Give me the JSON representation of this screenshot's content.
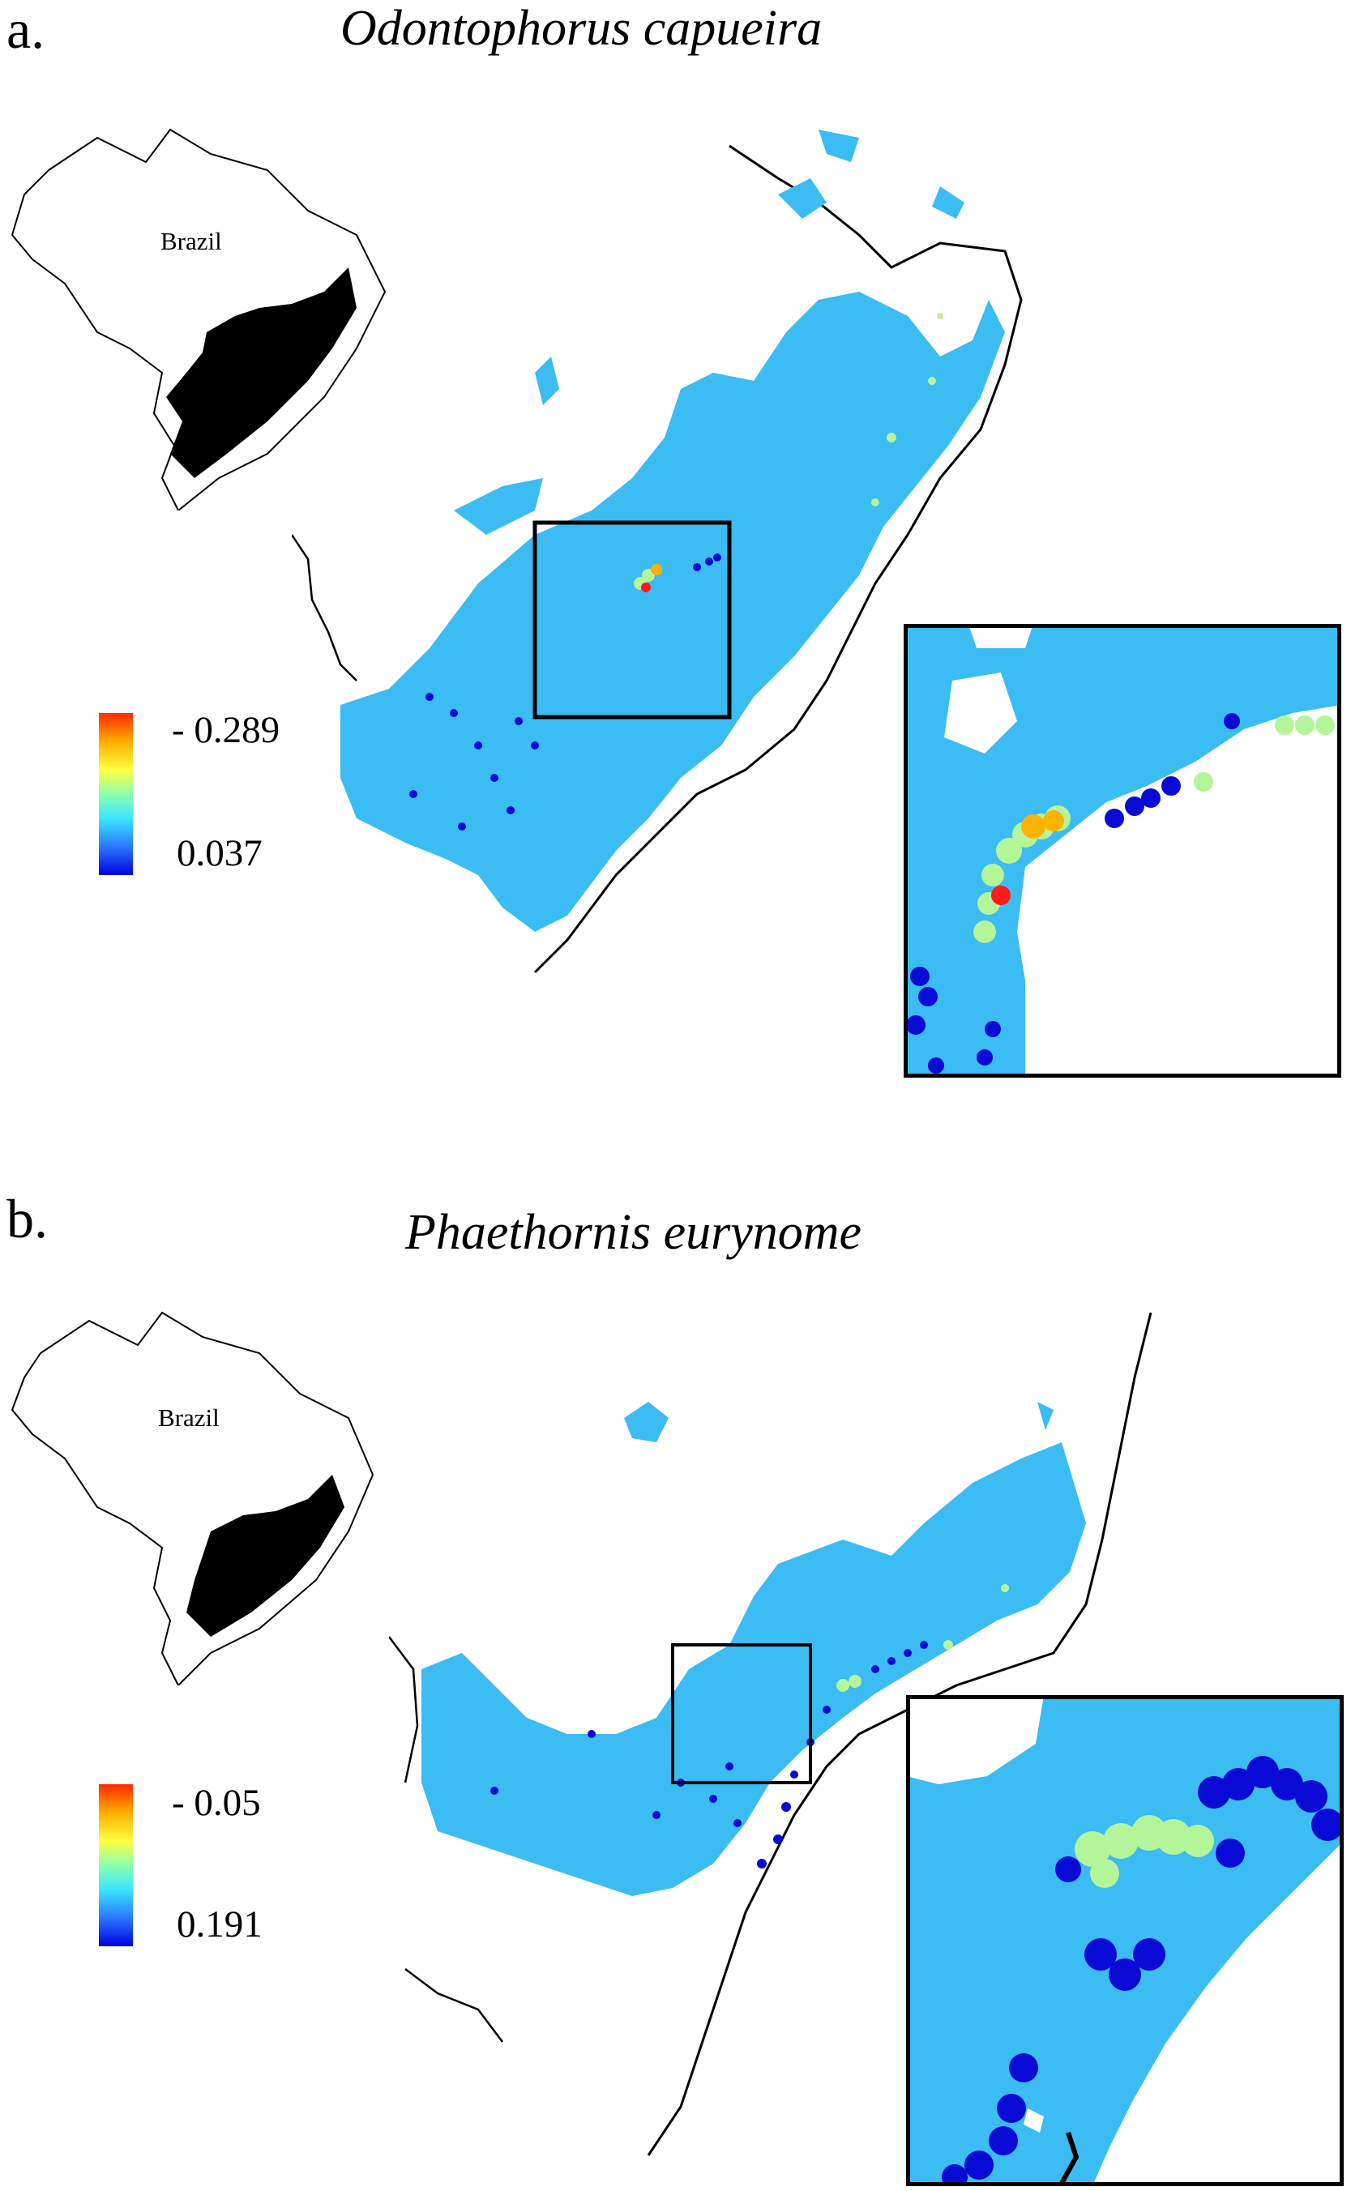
{
  "figure": {
    "panels": [
      {
        "letter": "a.",
        "species": "Odontophorus capueira",
        "country_label": "Brazil",
        "legend": {
          "top_value": "- 0.289",
          "bottom_value": "0.037",
          "colors": [
            "#ff2a00",
            "#ffb000",
            "#ffff40",
            "#8cffb0",
            "#3ce6ff",
            "#2b7bff",
            "#0000e0"
          ]
        }
      },
      {
        "letter": "b.",
        "species": "Phaethornis eurynome",
        "country_label": "Brazil",
        "legend": {
          "top_value": "- 0.05",
          "bottom_value": "0.191",
          "colors": [
            "#ff2a00",
            "#ffb000",
            "#ffff40",
            "#8cffb0",
            "#3ce6ff",
            "#2b7bff",
            "#0000e0"
          ]
        }
      }
    ],
    "colors": {
      "range_fill": "#3bbcf2",
      "low_value": "#0a0ad6",
      "mid_value": "#b5f59a",
      "high_value": "#ffb300",
      "peak_value": "#ff1a1a",
      "outline": "#000000"
    }
  }
}
